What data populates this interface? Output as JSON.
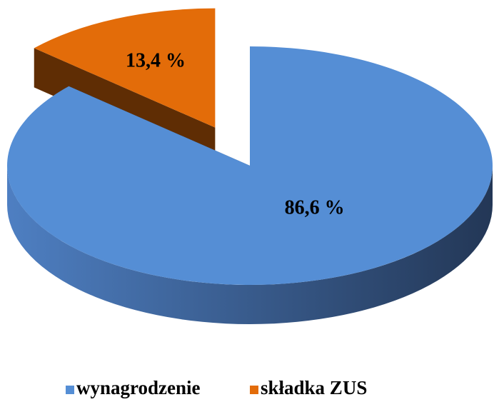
{
  "chart_data": {
    "type": "pie3d",
    "categories": [
      "wynagrodzenie",
      "składka ZUS"
    ],
    "values": [
      86.6,
      13.4
    ],
    "value_labels": [
      "86,6 %",
      "13,4 %"
    ],
    "colors": [
      "#558ed5",
      "#e36c09"
    ],
    "exploded": [
      false,
      true
    ],
    "legend": "bottom"
  }
}
